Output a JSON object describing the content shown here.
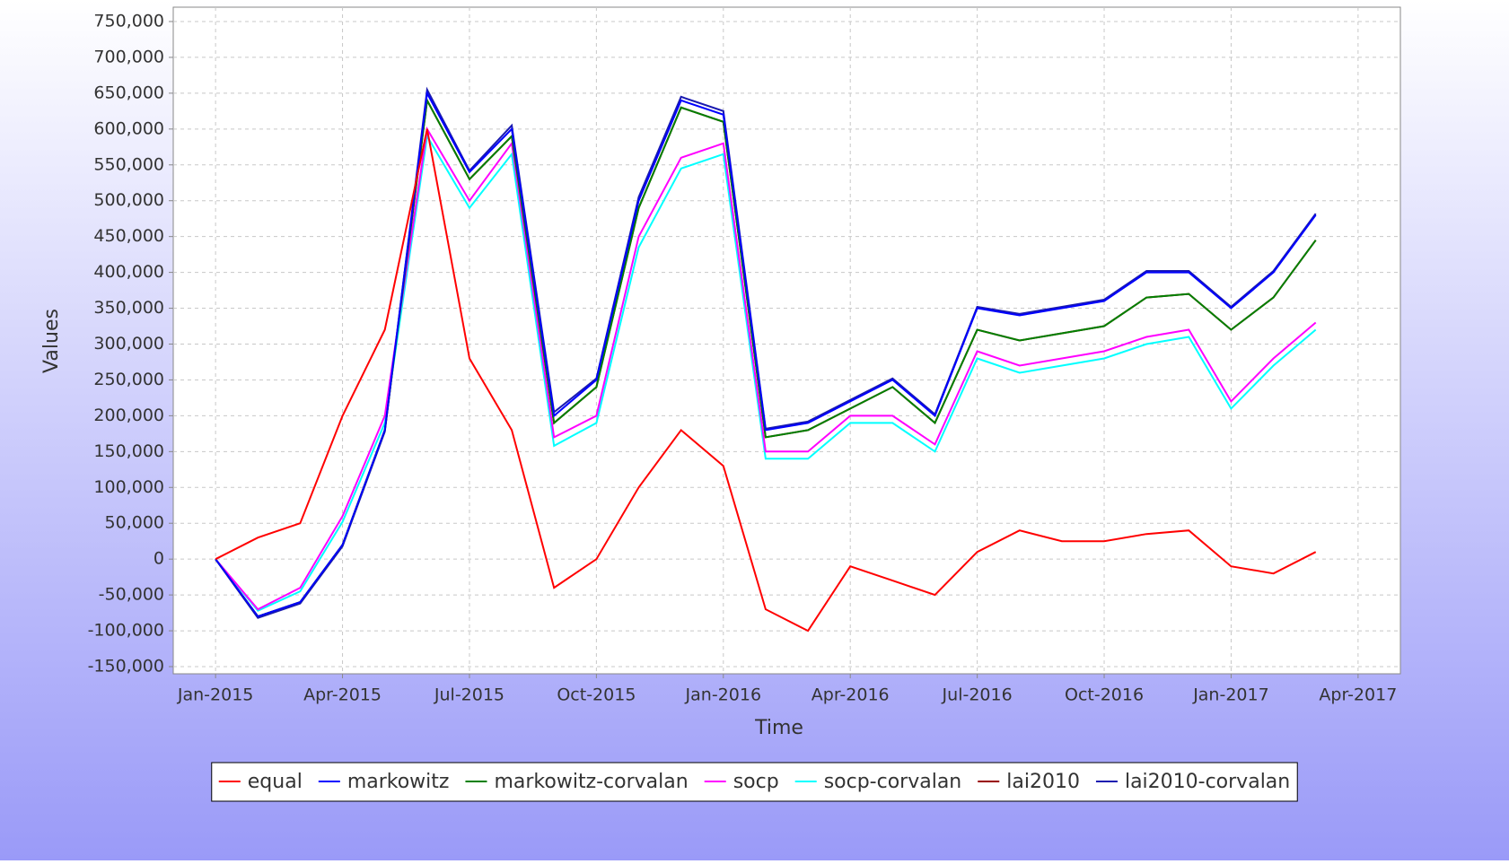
{
  "chart_data": {
    "type": "line",
    "x_label": "Time",
    "y_label": "Values",
    "x": [
      "Jan-2015",
      "Feb-2015",
      "Mar-2015",
      "Apr-2015",
      "May-2015",
      "Jun-2015",
      "Jul-2015",
      "Aug-2015",
      "Sep-2015",
      "Oct-2015",
      "Nov-2015",
      "Dec-2015",
      "Jan-2016",
      "Feb-2016",
      "Mar-2016",
      "Apr-2016",
      "May-2016",
      "Jun-2016",
      "Jul-2016",
      "Aug-2016",
      "Sep-2016",
      "Oct-2016",
      "Nov-2016",
      "Dec-2016",
      "Jan-2017",
      "Feb-2017",
      "Mar-2017"
    ],
    "series": [
      {
        "name": "equal",
        "color": "#ff0000",
        "values": [
          0,
          30000,
          50000,
          200000,
          320000,
          600000,
          280000,
          180000,
          -40000,
          0,
          100000,
          180000,
          130000,
          -70000,
          -100000,
          -10000,
          -30000,
          -50000,
          10000,
          40000,
          25000,
          25000,
          35000,
          40000,
          -10000,
          -20000,
          10000
        ]
      },
      {
        "name": "markowitz",
        "color": "#0000ff",
        "values": [
          0,
          -80000,
          -60000,
          20000,
          180000,
          650000,
          540000,
          600000,
          200000,
          250000,
          500000,
          640000,
          620000,
          180000,
          190000,
          220000,
          250000,
          200000,
          350000,
          340000,
          350000,
          360000,
          400000,
          400000,
          350000,
          400000,
          480000
        ]
      },
      {
        "name": "markowitz-corvalan",
        "color": "#008000",
        "values": [
          0,
          -80000,
          -60000,
          20000,
          180000,
          640000,
          530000,
          590000,
          190000,
          240000,
          490000,
          630000,
          610000,
          170000,
          180000,
          210000,
          240000,
          190000,
          320000,
          305000,
          315000,
          325000,
          365000,
          370000,
          320000,
          365000,
          445000
        ]
      },
      {
        "name": "socp",
        "color": "#ff00ff",
        "values": [
          0,
          -70000,
          -40000,
          60000,
          200000,
          600000,
          500000,
          580000,
          170000,
          200000,
          450000,
          560000,
          580000,
          150000,
          150000,
          200000,
          200000,
          160000,
          290000,
          270000,
          280000,
          290000,
          310000,
          320000,
          220000,
          280000,
          330000
        ]
      },
      {
        "name": "socp-corvalan",
        "color": "#00ffff",
        "values": [
          0,
          -72000,
          -45000,
          52000,
          190000,
          590000,
          490000,
          565000,
          158000,
          190000,
          435000,
          545000,
          565000,
          140000,
          140000,
          190000,
          190000,
          150000,
          280000,
          260000,
          270000,
          280000,
          300000,
          310000,
          210000,
          270000,
          320000
        ]
      },
      {
        "name": "lai2010",
        "color": "#990000",
        "values": [
          0,
          -80000,
          -60000,
          20000,
          180000,
          640000,
          530000,
          590000,
          190000,
          240000,
          490000,
          630000,
          610000,
          170000,
          180000,
          210000,
          240000,
          190000,
          320000,
          305000,
          315000,
          325000,
          365000,
          370000,
          320000,
          365000,
          445000
        ]
      },
      {
        "name": "lai2010-corvalan",
        "color": "#1a1ab0",
        "values": [
          0,
          -82000,
          -62000,
          18000,
          178000,
          655000,
          542000,
          605000,
          205000,
          252000,
          505000,
          645000,
          625000,
          182000,
          192000,
          222000,
          252000,
          202000,
          352000,
          342000,
          352000,
          362000,
          402000,
          402000,
          352000,
          402000,
          482000
        ]
      }
    ],
    "xlim": [
      "Dec-2014",
      "May-2017"
    ],
    "xticks": [
      "Jan-2015",
      "Apr-2015",
      "Jul-2015",
      "Oct-2015",
      "Jan-2016",
      "Apr-2016",
      "Jul-2016",
      "Oct-2016",
      "Jan-2017",
      "Apr-2017"
    ],
    "ylim": [
      -160000,
      770000
    ],
    "yticks": [
      {
        "value": -150000,
        "label": "-150,000"
      },
      {
        "value": -100000,
        "label": "-100,000"
      },
      {
        "value": -50000,
        "label": "-50,000"
      },
      0,
      {
        "value": 50000,
        "label": "50,000"
      },
      {
        "value": 100000,
        "label": "100,000"
      },
      {
        "value": 150000,
        "label": "150,000"
      },
      {
        "value": 200000,
        "label": "200,000"
      },
      {
        "value": 250000,
        "label": "250,000"
      },
      {
        "value": 300000,
        "label": "300,000"
      },
      {
        "value": 350000,
        "label": "350,000"
      },
      {
        "value": 400000,
        "label": "400,000"
      },
      {
        "value": 450000,
        "label": "450,000"
      },
      {
        "value": 500000,
        "label": "500,000"
      },
      {
        "value": 550000,
        "label": "550,000"
      },
      {
        "value": 600000,
        "label": "600,000"
      },
      {
        "value": 650000,
        "label": "650,000"
      },
      {
        "value": 700000,
        "label": "700,000"
      },
      {
        "value": {
          "value": 750000,
          "label": "750,000"
        },
        "label": "750,000"
      }
    ],
    "grid": true,
    "legend": "bottom"
  }
}
